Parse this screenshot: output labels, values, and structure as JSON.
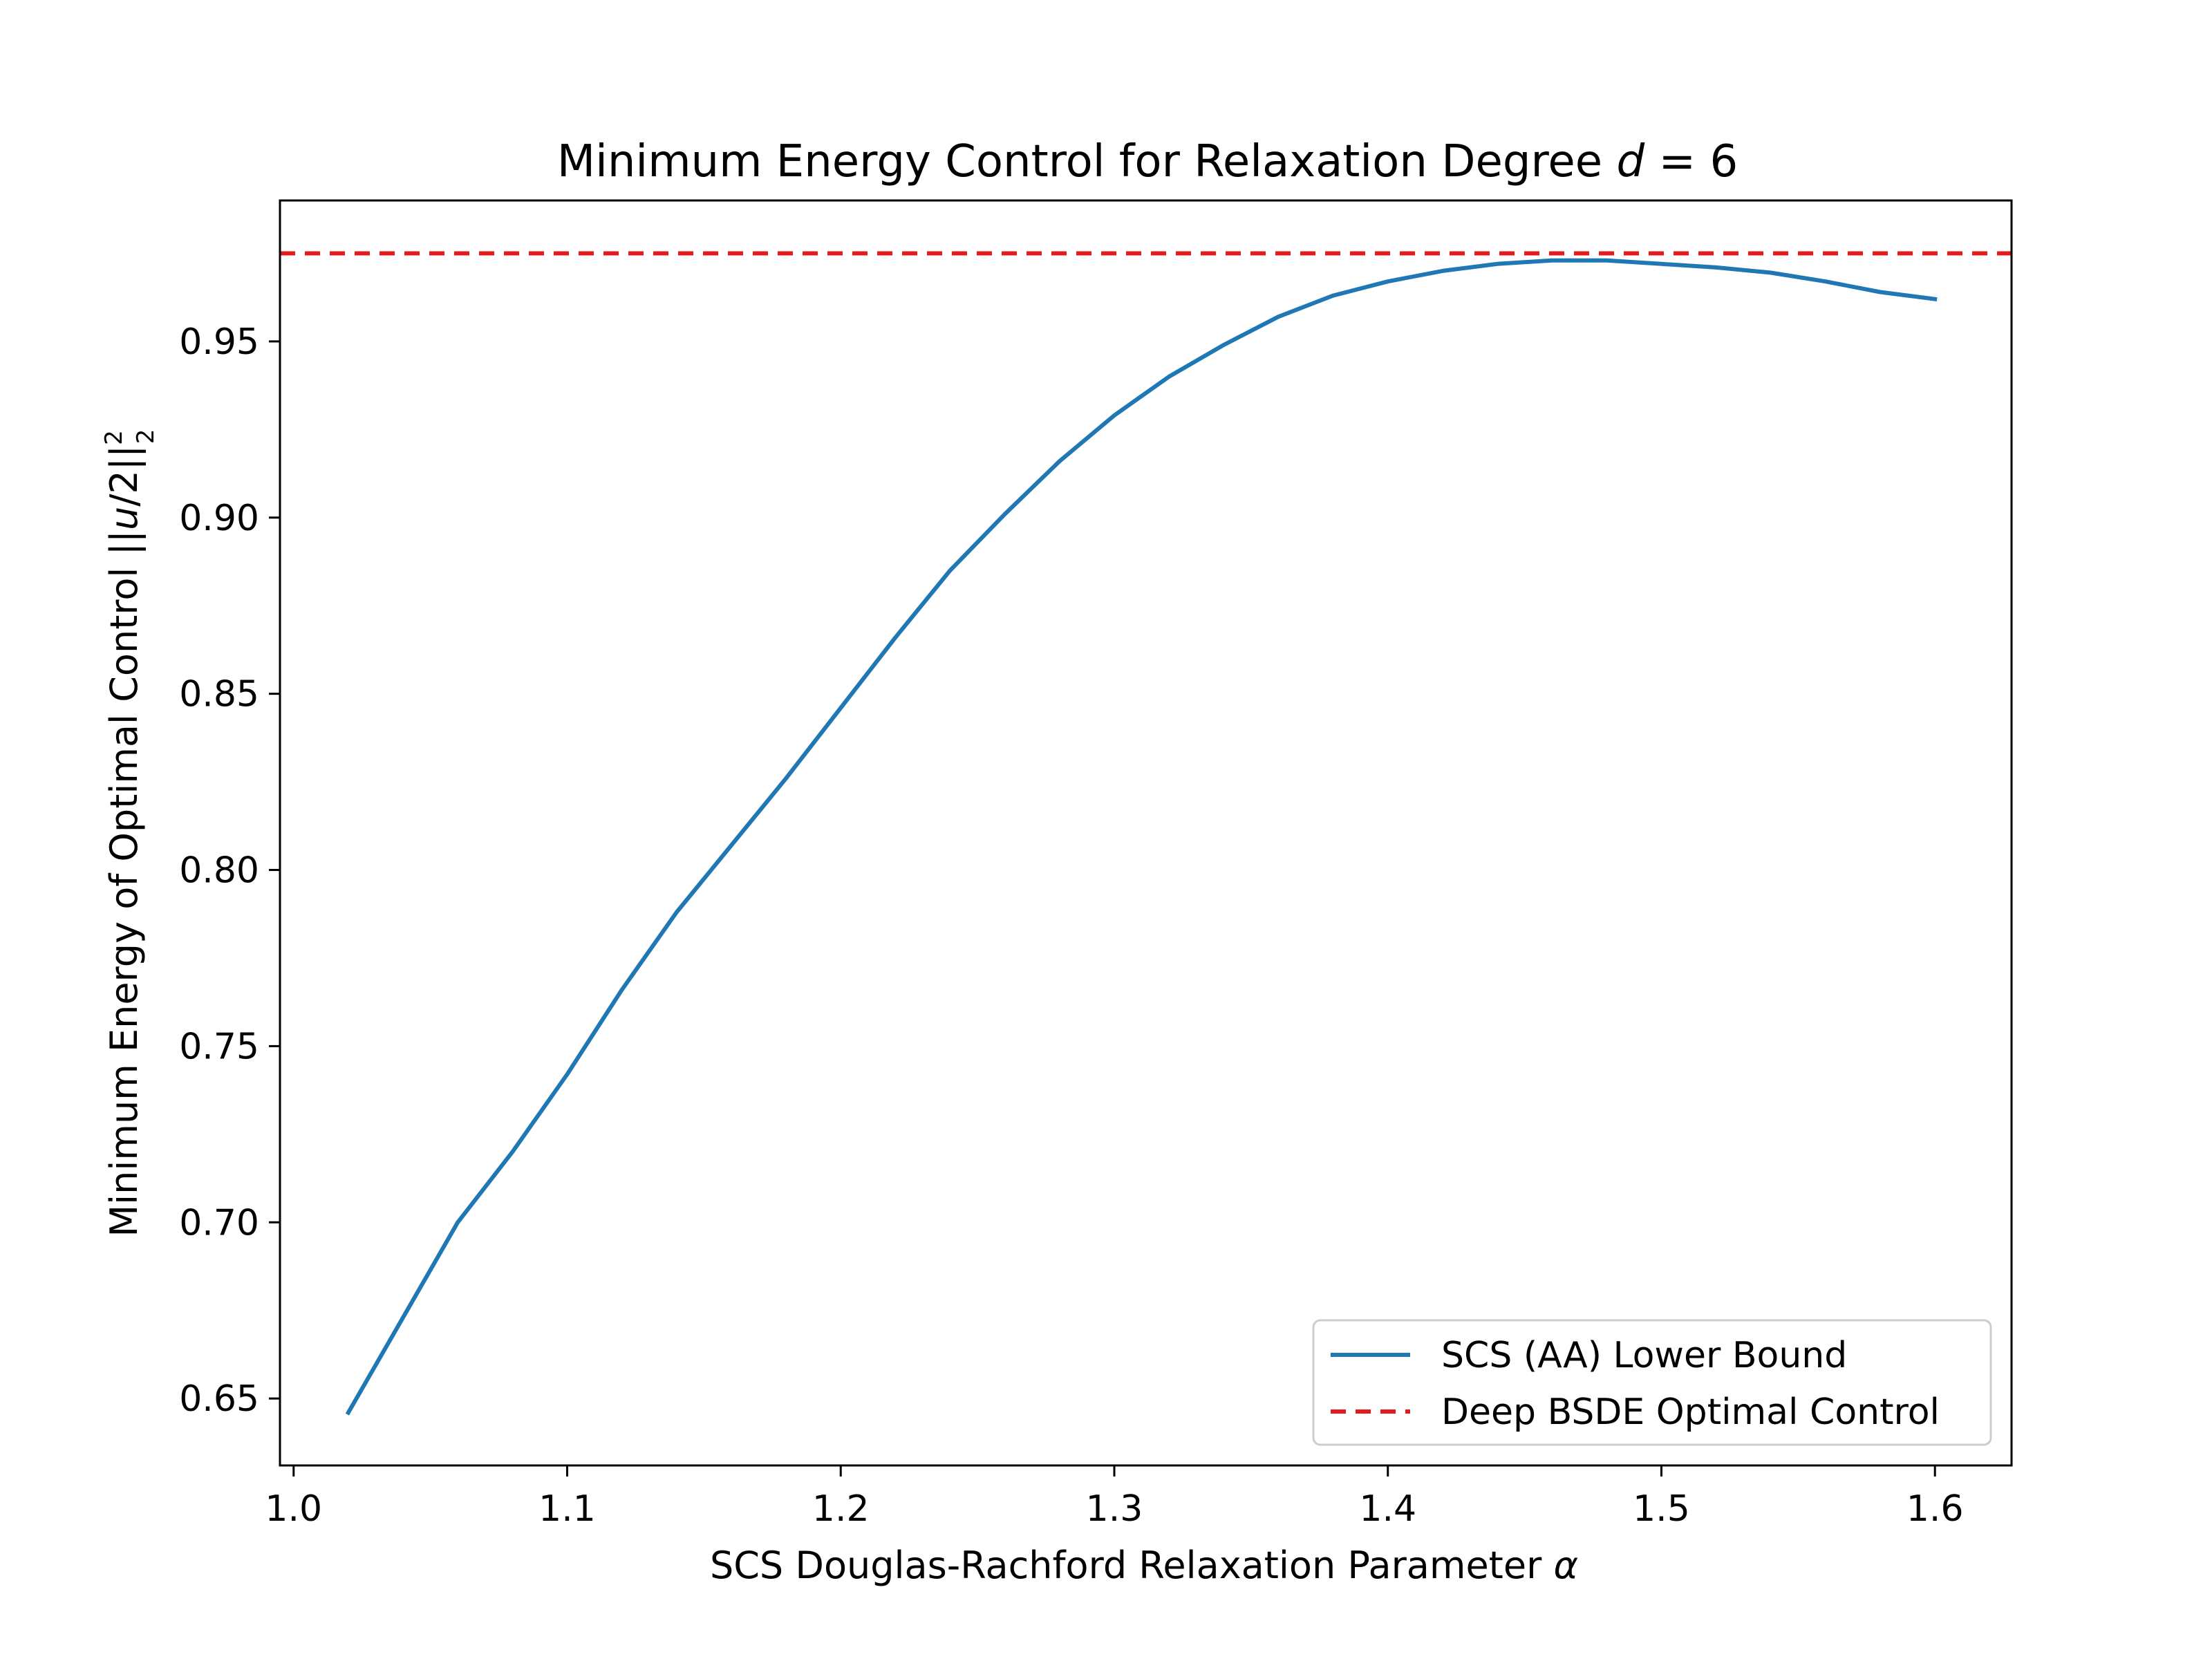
{
  "chart_data": {
    "type": "line",
    "title": "Minimum Energy Control for Relaxation Degree d = 6",
    "title_main": "Minimum Energy Control for Relaxation Degree ",
    "title_var": "d",
    "title_tail": " = 6",
    "xlabel": "SCS Douglas-Rachford Relaxation Parameter α",
    "xlabel_main": "SCS Douglas-Rachford Relaxation Parameter ",
    "xlabel_var": "α",
    "ylabel": "Minimum Energy of Optimal Control ||u/2||₂²",
    "ylabel_main": "Minimum Energy of Optimal Control ||",
    "ylabel_var": "u",
    "ylabel_tail": "/2||",
    "ylabel_sup": "2",
    "ylabel_sub": "2",
    "xlim": [
      0.995,
      1.628
    ],
    "ylim": [
      0.631,
      0.99
    ],
    "x_ticks": [
      1.0,
      1.1,
      1.2,
      1.3,
      1.4,
      1.5,
      1.6
    ],
    "x_tick_labels": [
      "1.0",
      "1.1",
      "1.2",
      "1.3",
      "1.4",
      "1.5",
      "1.6"
    ],
    "y_ticks": [
      0.65,
      0.7,
      0.75,
      0.8,
      0.85,
      0.9,
      0.95
    ],
    "y_tick_labels": [
      "0.65",
      "0.70",
      "0.75",
      "0.80",
      "0.85",
      "0.90",
      "0.95"
    ],
    "grid": false,
    "legend_position": "bottom-right",
    "series": [
      {
        "name": "SCS (AA) Lower Bound",
        "color": "#1f77b4",
        "style": "solid",
        "x": [
          1.02,
          1.04,
          1.06,
          1.08,
          1.1,
          1.12,
          1.14,
          1.16,
          1.18,
          1.2,
          1.22,
          1.24,
          1.26,
          1.28,
          1.3,
          1.32,
          1.34,
          1.36,
          1.38,
          1.4,
          1.42,
          1.44,
          1.46,
          1.48,
          1.5,
          1.52,
          1.54,
          1.56,
          1.58,
          1.6
        ],
        "y": [
          0.646,
          0.673,
          0.7,
          0.72,
          0.742,
          0.766,
          0.788,
          0.807,
          0.826,
          0.846,
          0.866,
          0.885,
          0.901,
          0.916,
          0.929,
          0.94,
          0.949,
          0.957,
          0.963,
          0.967,
          0.97,
          0.972,
          0.973,
          0.973,
          0.972,
          0.971,
          0.9695,
          0.967,
          0.964,
          0.962
        ]
      },
      {
        "name": "Deep BSDE Optimal Control",
        "color": "#e41a1c",
        "style": "dashed",
        "y_constant": 0.975
      }
    ]
  }
}
